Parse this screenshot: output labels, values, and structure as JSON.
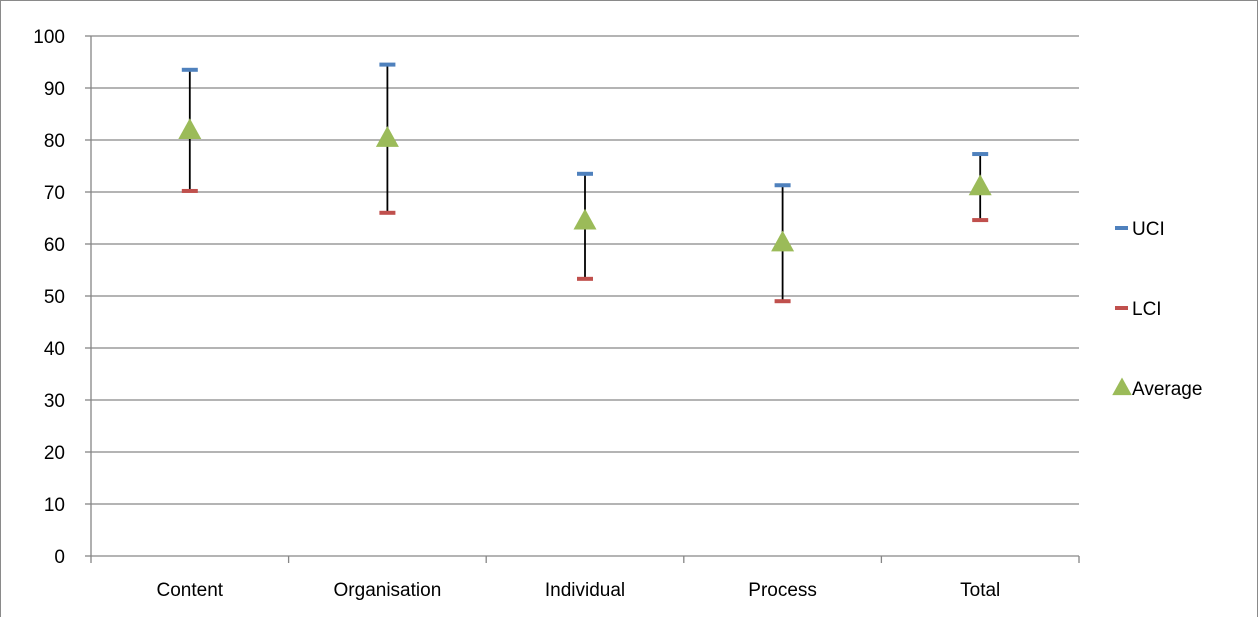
{
  "chart_data": {
    "type": "scatter",
    "title": "",
    "xlabel": "",
    "ylabel": "",
    "categories": [
      "Content",
      "Organisation",
      "Individual",
      "Process",
      "Total"
    ],
    "ylim": [
      0,
      100
    ],
    "yticks": [
      0,
      10,
      20,
      30,
      40,
      50,
      60,
      70,
      80,
      90,
      100
    ],
    "ytick_labels": [
      "0",
      "10",
      "20",
      "30",
      "40",
      "50",
      "60",
      "70",
      "80",
      "90",
      "100"
    ],
    "grid": true,
    "legend_position": "right",
    "series": [
      {
        "name": "UCI",
        "values": [
          93.5,
          94.5,
          73.5,
          71.3,
          77.3
        ],
        "color": "#4f81bd",
        "marker": "dash"
      },
      {
        "name": "LCI",
        "values": [
          70.2,
          66.0,
          53.3,
          49.0,
          64.6
        ],
        "color": "#c0504d",
        "marker": "dash"
      },
      {
        "name": "Average",
        "values": [
          81.8,
          80.3,
          64.4,
          60.2,
          71.0
        ],
        "color": "#9bbb59",
        "marker": "triangle"
      }
    ],
    "error_bar_color": "#000000",
    "gridline_color": "#868686"
  }
}
